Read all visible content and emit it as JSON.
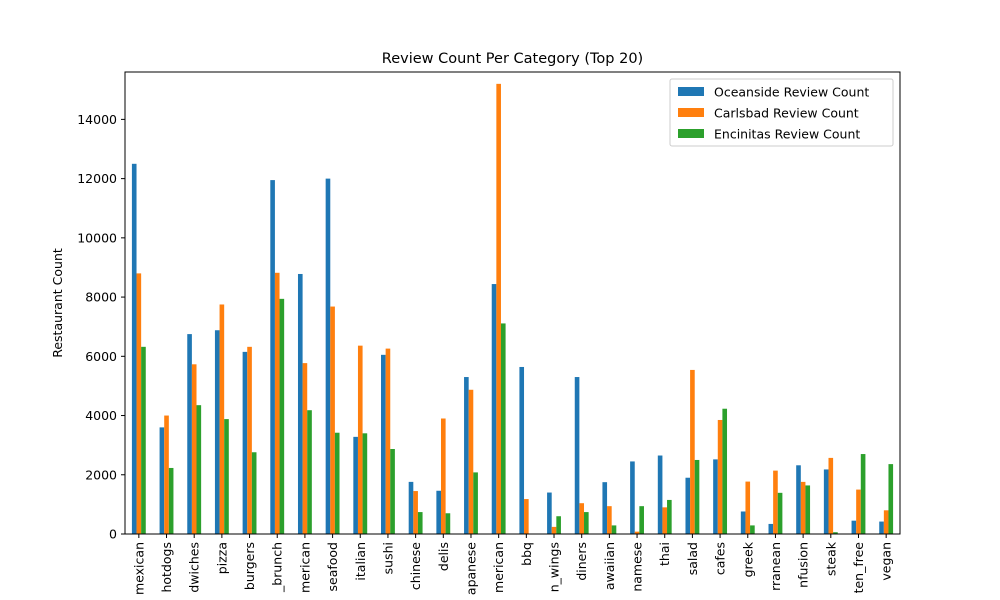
{
  "chart_data": {
    "type": "bar",
    "title": "Review Count Per Category (Top 20)",
    "xlabel": "",
    "ylabel": "Restaurant Count",
    "ylim": [
      0,
      15600
    ],
    "yticks": [
      0,
      2000,
      4000,
      6000,
      8000,
      10000,
      12000,
      14000
    ],
    "grid": false,
    "legend_position": "top-right",
    "categories": [
      "mexican",
      "hotdogs",
      "sandwiches",
      "pizza",
      "burgers",
      "breakfast_brunch",
      "tradamerican",
      "seafood",
      "italian",
      "sushi",
      "chinese",
      "delis",
      "japanese",
      "newamerican",
      "bbq",
      "chicken_wings",
      "diners",
      "hawaiian",
      "vietnamese",
      "thai",
      "salad",
      "cafes",
      "greek",
      "mediterranean",
      "asianfusion",
      "steak",
      "gluten_free",
      "vegan"
    ],
    "category_labels_shown": [
      "mexican",
      "hotdogs",
      "dwiches",
      "pizza",
      "burgers",
      "_brunch",
      "merican",
      "seafood",
      "italian",
      "sushi",
      "chinese",
      "delis",
      "apanese",
      "merican",
      "bbq",
      "n_wings",
      "diners",
      "awaiian",
      "namese",
      "thai",
      "salad",
      "cafes",
      "greek",
      "rranean",
      "nfusion",
      "steak",
      "ten_free",
      "vegan"
    ],
    "series": [
      {
        "name": "Oceanside Review Count",
        "color": "#1f77b4",
        "values": [
          12500,
          3600,
          6750,
          6880,
          6150,
          11950,
          8780,
          12000,
          3280,
          6050,
          1760,
          1460,
          5300,
          8440,
          5640,
          1400,
          5300,
          1750,
          2450,
          2650,
          1900,
          2520,
          760,
          340,
          2320,
          2180,
          450,
          420
        ]
      },
      {
        "name": "Carlsbad Review Count",
        "color": "#ff7f0e",
        "values": [
          8800,
          4000,
          5730,
          7750,
          6320,
          8820,
          5770,
          7680,
          6360,
          6260,
          1450,
          3900,
          4870,
          15200,
          1180,
          240,
          1040,
          940,
          80,
          900,
          5540,
          3850,
          1770,
          2140,
          1760,
          2570,
          1500,
          800
        ]
      },
      {
        "name": "Encinitas Review Count",
        "color": "#2ca02c",
        "values": [
          6320,
          2230,
          4350,
          3880,
          2760,
          7940,
          4180,
          3420,
          3400,
          2870,
          740,
          700,
          2080,
          7110,
          0,
          600,
          740,
          290,
          940,
          1150,
          2500,
          4230,
          290,
          1390,
          1640,
          60,
          2700,
          2360
        ]
      }
    ]
  }
}
